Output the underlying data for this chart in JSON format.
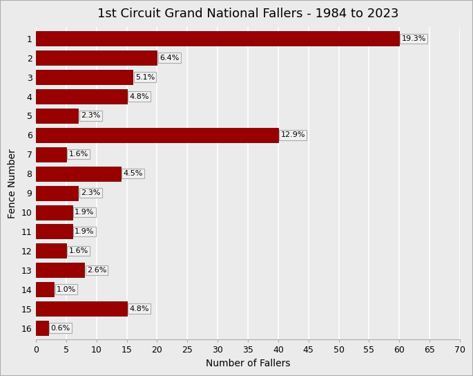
{
  "title": "1st Circuit Grand National Fallers - 1984 to 2023",
  "xlabel": "Number of Fallers",
  "ylabel": "Fence Number",
  "fences": [
    1,
    2,
    3,
    4,
    5,
    6,
    7,
    8,
    9,
    10,
    11,
    12,
    13,
    14,
    15,
    16
  ],
  "values": [
    60,
    20,
    16,
    15,
    7,
    40,
    5,
    14,
    7,
    6,
    6,
    5,
    8,
    3,
    15,
    2
  ],
  "labels": [
    "19.3%",
    "6.4%",
    "5.1%",
    "4.8%",
    "2.3%",
    "12.9%",
    "1.6%",
    "4.5%",
    "2.3%",
    "1.9%",
    "1.9%",
    "1.6%",
    "2.6%",
    "1.0%",
    "4.8%",
    "0.6%"
  ],
  "bar_color": "#990000",
  "bar_edge_color": "#6b0000",
  "background_color": "#ebebeb",
  "xlim": [
    0,
    70
  ],
  "xticks": [
    0,
    5,
    10,
    15,
    20,
    25,
    30,
    35,
    40,
    45,
    50,
    55,
    60,
    65,
    70
  ],
  "grid_color": "#ffffff",
  "label_box_facecolor": "#f0f0f0",
  "label_box_edgecolor": "#aaaaaa",
  "label_fontsize": 8,
  "title_fontsize": 13,
  "axis_label_fontsize": 10,
  "tick_fontsize": 9,
  "border_color": "#aaaaaa",
  "bar_height": 0.75
}
